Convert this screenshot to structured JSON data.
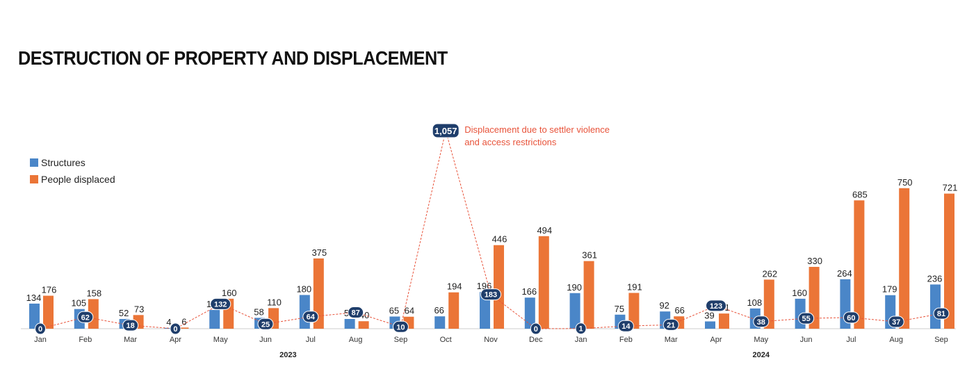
{
  "title": "DESTRUCTION OF PROPERTY AND DISPLACEMENT",
  "legend": {
    "structures": "Structures",
    "people": "People displaced"
  },
  "colors": {
    "structures": "#4a86c8",
    "people": "#eb7537",
    "displacement_line": "#e8533a",
    "badge": "#1f3e6b"
  },
  "chart_data": {
    "type": "bar",
    "categories": [
      "Jan",
      "Feb",
      "Mar",
      "Apr",
      "May",
      "Jun",
      "Jul",
      "Aug",
      "Sep",
      "Oct",
      "Nov",
      "Dec",
      "Jan",
      "Feb",
      "Mar",
      "Apr",
      "May",
      "Jun",
      "Jul",
      "Aug",
      "Sep"
    ],
    "year_labels": [
      {
        "label": "2023",
        "start": 0,
        "end": 11
      },
      {
        "label": "2024",
        "start": 12,
        "end": 20
      }
    ],
    "series": [
      {
        "name": "Structures",
        "type": "bar",
        "values": [
          134,
          105,
          52,
          4,
          100,
          58,
          180,
          52,
          65,
          66,
          196,
          166,
          190,
          75,
          92,
          39,
          108,
          160,
          264,
          179,
          236
        ]
      },
      {
        "name": "People displaced",
        "type": "bar",
        "values": [
          176,
          158,
          73,
          6,
          160,
          110,
          375,
          40,
          64,
          194,
          446,
          494,
          361,
          191,
          66,
          81,
          262,
          330,
          685,
          750,
          721
        ]
      },
      {
        "name": "Displacement due to settler violence and access restrictions",
        "type": "line",
        "values": [
          0,
          62,
          18,
          0,
          132,
          25,
          64,
          87,
          10,
          1057,
          183,
          0,
          1,
          14,
          21,
          123,
          38,
          55,
          60,
          37,
          81
        ]
      }
    ],
    "annotation": {
      "value": "1,057",
      "text_line1": "Displacement due to settler violence",
      "text_line2": "and access restrictions"
    },
    "ylim": [
      0,
      1070
    ]
  }
}
